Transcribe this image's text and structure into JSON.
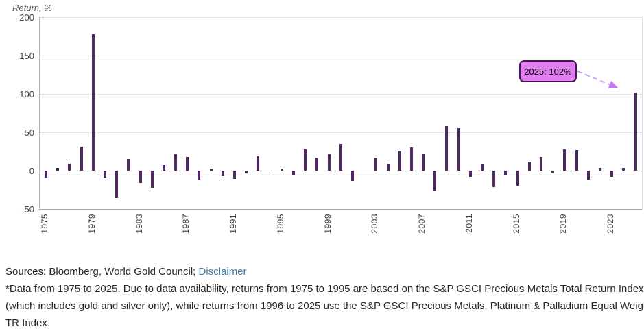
{
  "chart_data": {
    "type": "bar",
    "title": "Return, %",
    "ylabel": "Return, %",
    "xlabel": "",
    "x": [
      1975,
      1976,
      1977,
      1978,
      1979,
      1980,
      1981,
      1982,
      1983,
      1984,
      1985,
      1986,
      1987,
      1988,
      1989,
      1990,
      1991,
      1992,
      1993,
      1994,
      1995,
      1996,
      1997,
      1998,
      1999,
      2000,
      2001,
      2002,
      2003,
      2004,
      2005,
      2006,
      2007,
      2008,
      2009,
      2010,
      2011,
      2012,
      2013,
      2014,
      2015,
      2016,
      2017,
      2018,
      2019,
      2020,
      2021,
      2022,
      2023,
      2024,
      2025
    ],
    "values": [
      -10,
      4,
      9,
      31,
      178,
      -10,
      -36,
      15,
      -16,
      -22,
      7,
      21,
      18,
      -12,
      2,
      -7,
      -11,
      -4,
      19,
      -1,
      3,
      -6,
      28,
      17,
      21,
      35,
      -13,
      0,
      16,
      9,
      26,
      30,
      22,
      -27,
      58,
      55,
      -9,
      8,
      -21,
      -6,
      -20,
      12,
      18,
      -3,
      28,
      27,
      -12,
      4,
      -8,
      4,
      102
    ],
    "ylim": [
      -50,
      200
    ],
    "yticks": [
      200,
      150,
      100,
      50,
      0,
      -50
    ],
    "xticks": [
      1975,
      1979,
      1983,
      1987,
      1991,
      1995,
      1999,
      2003,
      2007,
      2011,
      2015,
      2019,
      2023
    ],
    "grid": "horizontal-dotted",
    "legend": "none",
    "bar_color": "#4c2a5e",
    "annotation": {
      "text": "2025: 102%",
      "year": 2025,
      "value": 102,
      "box_fill": "#e27ff0",
      "box_border": "#3e195c",
      "arrow_color": "#c9a0f2",
      "arrowhead_color": "#c678ee"
    }
  },
  "footer": {
    "sources": "Sources: Bloomberg, World Gold Council; ",
    "disclaimer": "Disclaimer",
    "note1": "*Data from 1975 to 2025. Due to data availability, returns from 1975 to 1995 are based on the S&P GSCI Precious Metals Total Return Index",
    "note2": "(which includes gold and silver only), while returns from 1996 to 2025 use the S&P GSCI Precious Metals, Platinum & Palladium Equal Weighted",
    "note3": "TR Index."
  }
}
